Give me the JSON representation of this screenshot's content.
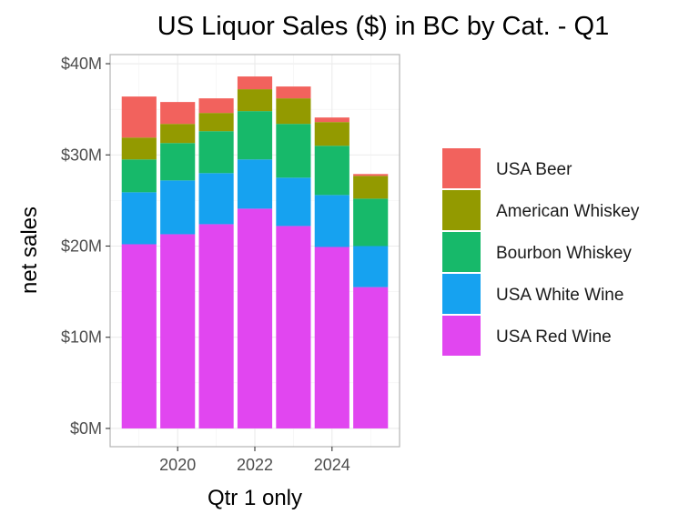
{
  "chart_data": {
    "type": "bar",
    "stacked": true,
    "title": "US Liquor Sales ($) in BC by Cat. - Q1",
    "xlabel": "Qtr 1 only",
    "ylabel": "net sales",
    "x": [
      2019,
      2020,
      2021,
      2022,
      2023,
      2024,
      2025
    ],
    "xlim": [
      2018.25,
      2025.75
    ],
    "xticks": [
      2020,
      2022,
      2024
    ],
    "xtick_labels": [
      "2020",
      "2022",
      "2024"
    ],
    "ylim": [
      -2,
      41
    ],
    "yticks": [
      0,
      10,
      20,
      30,
      40
    ],
    "ytick_labels": [
      "$0M",
      "$10M",
      "$20M",
      "$30M",
      "$40M"
    ],
    "y_unit": "millions of dollars",
    "grid": true,
    "legend_position": "right",
    "series": [
      {
        "name": "USA Red Wine",
        "color": "#E146F0",
        "values": [
          20.2,
          21.3,
          22.4,
          24.1,
          22.2,
          19.9,
          15.5
        ]
      },
      {
        "name": "USA White Wine",
        "color": "#16A2F0",
        "values": [
          5.7,
          5.9,
          5.6,
          5.4,
          5.3,
          5.7,
          4.5
        ]
      },
      {
        "name": "Bourbon Whiskey",
        "color": "#17B96A",
        "values": [
          3.6,
          4.1,
          4.6,
          5.3,
          5.9,
          5.4,
          5.2
        ]
      },
      {
        "name": "American Whiskey",
        "color": "#939A00",
        "values": [
          2.4,
          2.1,
          2.0,
          2.4,
          2.8,
          2.6,
          2.5
        ]
      },
      {
        "name": "USA Beer",
        "color": "#F2625D",
        "values": [
          4.5,
          2.4,
          1.6,
          1.4,
          1.3,
          0.5,
          0.2
        ]
      }
    ],
    "legend_order": [
      "USA Beer",
      "American Whiskey",
      "Bourbon Whiskey",
      "USA White Wine",
      "USA Red Wine"
    ]
  }
}
